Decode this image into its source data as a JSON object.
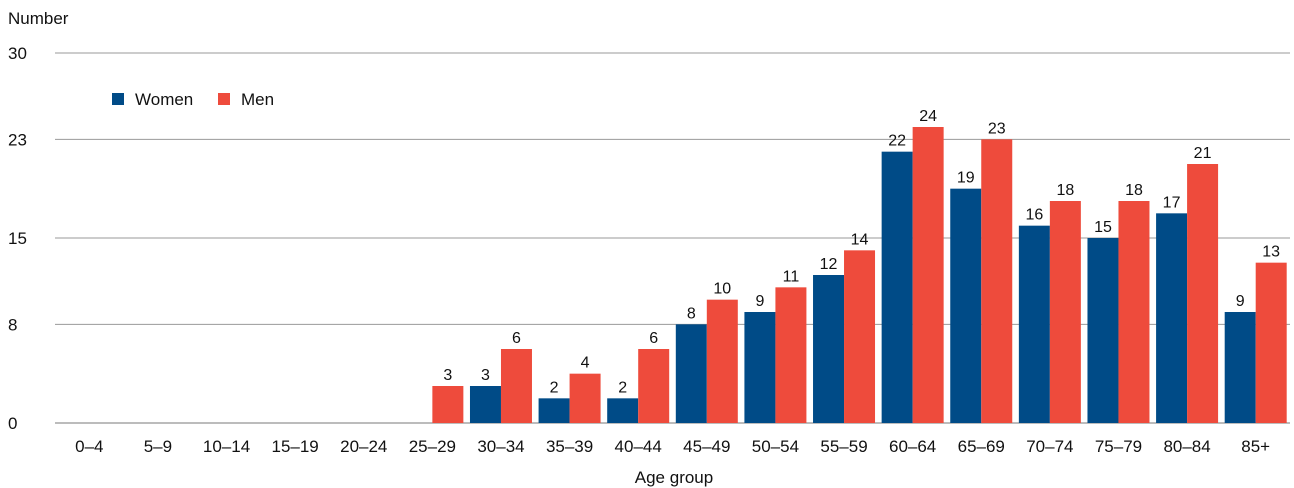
{
  "chart_data": {
    "type": "bar",
    "ylabel": "Number",
    "xlabel": "Age group",
    "ylim": [
      0,
      30
    ],
    "yticks": [
      "0",
      "8",
      "15",
      "23",
      "30"
    ],
    "grid": true,
    "legend_position": "top-left",
    "categories": [
      "0–4",
      "5–9",
      "10–14",
      "15–19",
      "20–24",
      "25–29",
      "30–34",
      "35–39",
      "40–44",
      "45–49",
      "50–54",
      "55–59",
      "60–64",
      "65–69",
      "70–74",
      "75–79",
      "80–84",
      "85+"
    ],
    "series": [
      {
        "name": "Women",
        "color": "#004B87",
        "values": [
          0,
          0,
          0,
          0,
          0,
          0,
          3,
          2,
          2,
          8,
          9,
          12,
          22,
          19,
          16,
          15,
          17,
          9
        ]
      },
      {
        "name": "Men",
        "color": "#EE4B3C",
        "values": [
          0,
          0,
          0,
          0,
          0,
          3,
          6,
          4,
          6,
          10,
          11,
          14,
          24,
          23,
          18,
          18,
          21,
          13
        ]
      }
    ]
  }
}
